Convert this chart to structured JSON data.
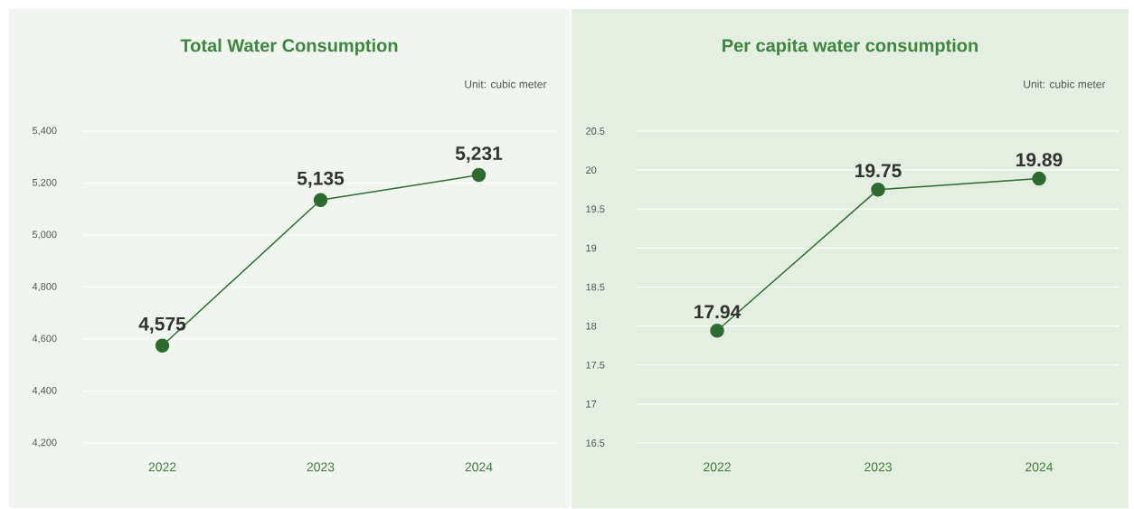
{
  "chart_data": [
    {
      "type": "line",
      "title": "Total Water Consumption",
      "annotations": [
        "Unit: cubic meter"
      ],
      "categories": [
        "2022",
        "2023",
        "2024"
      ],
      "series": [
        {
          "color": "#2e6b30",
          "values": [
            4575,
            5135,
            5231
          ],
          "value_labels": [
            "4,575",
            "5,135",
            "5,231"
          ]
        }
      ],
      "ylim": [
        4200,
        5400
      ],
      "yticks": [
        {
          "value": 4200,
          "label": "4,200"
        },
        {
          "value": 4400,
          "label": "4,400"
        },
        {
          "value": 4600,
          "label": "4,600"
        },
        {
          "value": 4800,
          "label": "4,800"
        },
        {
          "value": 5000,
          "label": "5,000"
        },
        {
          "value": 5200,
          "label": "5,200"
        },
        {
          "value": 5400,
          "label": "5,400"
        }
      ],
      "grid": "y",
      "marker": "circle",
      "line_style": "solid"
    },
    {
      "type": "line",
      "title": "Per capita water consumption",
      "annotations": [
        "Unit: cubic meter"
      ],
      "categories": [
        "2022",
        "2023",
        "2024"
      ],
      "series": [
        {
          "color": "#2e6b30",
          "values": [
            17.94,
            19.75,
            19.89
          ],
          "value_labels": [
            "17.94",
            "19.75",
            "19.89"
          ]
        }
      ],
      "ylim": [
        16.5,
        20.5
      ],
      "yticks": [
        16.5,
        17,
        17.5,
        18,
        18.5,
        19,
        19.5,
        20,
        20.5
      ],
      "grid": "y",
      "marker": "circle",
      "line_style": "solid"
    }
  ]
}
